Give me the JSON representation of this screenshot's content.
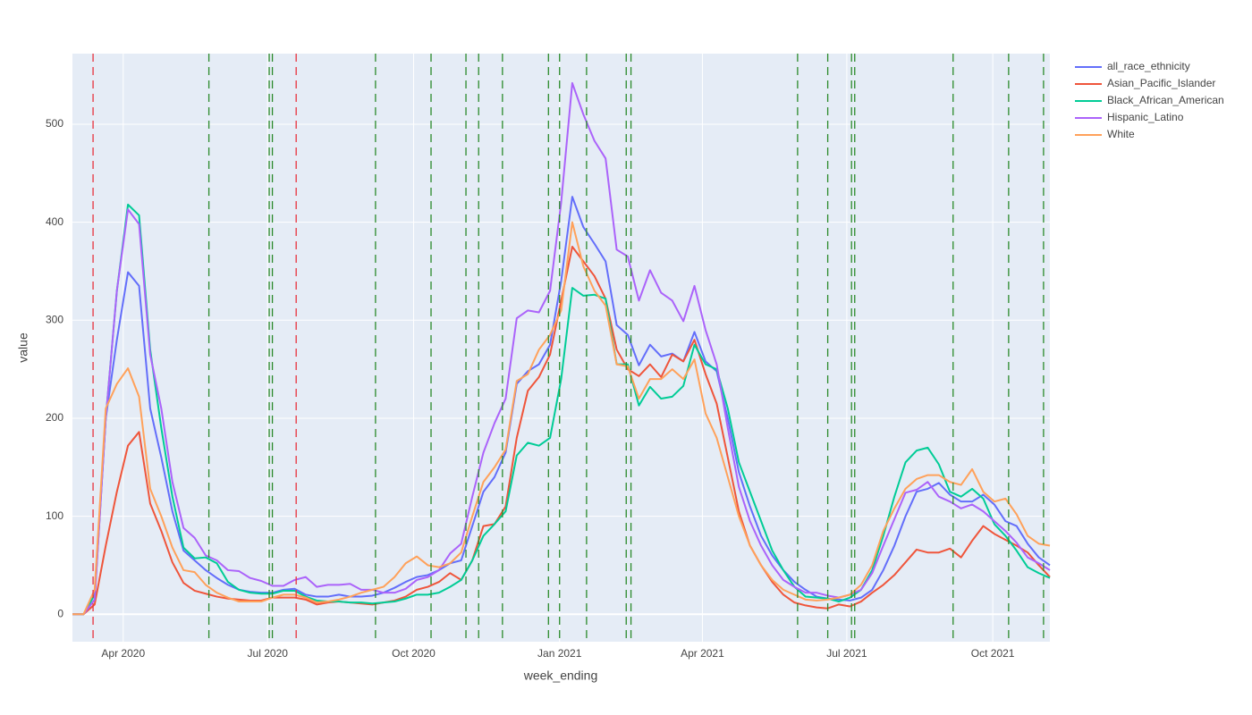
{
  "chart_data": {
    "type": "line",
    "x_label": "week_ending",
    "y_label": "value",
    "x": [
      "2020-02-29",
      "2020-03-07",
      "2020-03-14",
      "2020-03-21",
      "2020-03-28",
      "2020-04-04",
      "2020-04-11",
      "2020-04-18",
      "2020-04-25",
      "2020-05-02",
      "2020-05-09",
      "2020-05-16",
      "2020-05-23",
      "2020-05-30",
      "2020-06-06",
      "2020-06-13",
      "2020-06-20",
      "2020-06-27",
      "2020-07-04",
      "2020-07-11",
      "2020-07-18",
      "2020-07-25",
      "2020-08-01",
      "2020-08-08",
      "2020-08-15",
      "2020-08-22",
      "2020-08-29",
      "2020-09-05",
      "2020-09-12",
      "2020-09-19",
      "2020-09-26",
      "2020-10-03",
      "2020-10-10",
      "2020-10-17",
      "2020-10-24",
      "2020-10-31",
      "2020-11-07",
      "2020-11-14",
      "2020-11-21",
      "2020-11-28",
      "2020-12-05",
      "2020-12-12",
      "2020-12-19",
      "2020-12-26",
      "2021-01-02",
      "2021-01-09",
      "2021-01-16",
      "2021-01-23",
      "2021-01-30",
      "2021-02-06",
      "2021-02-13",
      "2021-02-20",
      "2021-02-27",
      "2021-03-06",
      "2021-03-13",
      "2021-03-20",
      "2021-03-27",
      "2021-04-03",
      "2021-04-10",
      "2021-04-17",
      "2021-04-24",
      "2021-05-01",
      "2021-05-08",
      "2021-05-15",
      "2021-05-22",
      "2021-05-29",
      "2021-06-05",
      "2021-06-12",
      "2021-06-19",
      "2021-06-26",
      "2021-07-03",
      "2021-07-10",
      "2021-07-17",
      "2021-07-24",
      "2021-07-31",
      "2021-08-07",
      "2021-08-14",
      "2021-08-21",
      "2021-08-28",
      "2021-09-04",
      "2021-09-11",
      "2021-09-18",
      "2021-09-25",
      "2021-10-02",
      "2021-10-09",
      "2021-10-16",
      "2021-10-23",
      "2021-10-30",
      "2021-11-06"
    ],
    "series": [
      {
        "name": "all_race_ethnicity",
        "color": "#636efa",
        "values": [
          0,
          0,
          15,
          200,
          280,
          349,
          335,
          210,
          160,
          105,
          65,
          55,
          45,
          37,
          30,
          25,
          23,
          22,
          22,
          25,
          26,
          20,
          18,
          18,
          20,
          18,
          18,
          19,
          22,
          27,
          33,
          38,
          40,
          45,
          52,
          55,
          90,
          125,
          140,
          165,
          235,
          248,
          255,
          275,
          340,
          426,
          395,
          378,
          360,
          295,
          285,
          254,
          275,
          263,
          266,
          258,
          288,
          258,
          248,
          200,
          145,
          110,
          80,
          60,
          45,
          33,
          25,
          18,
          16,
          15,
          14,
          17,
          25,
          45,
          70,
          100,
          125,
          128,
          134,
          122,
          115,
          115,
          122,
          112,
          95,
          90,
          72,
          58,
          50
        ]
      },
      {
        "name": "Asian_Pacific_Islander",
        "color": "#EF553B",
        "values": [
          0,
          0,
          10,
          70,
          125,
          172,
          186,
          113,
          85,
          53,
          32,
          24,
          21,
          18,
          16,
          15,
          14,
          14,
          17,
          17,
          17,
          15,
          10,
          12,
          13,
          12,
          11,
          10,
          12,
          14,
          18,
          25,
          28,
          33,
          42,
          35,
          55,
          90,
          92,
          110,
          180,
          228,
          242,
          265,
          320,
          375,
          360,
          345,
          322,
          270,
          250,
          243,
          255,
          242,
          265,
          258,
          280,
          245,
          215,
          160,
          105,
          70,
          50,
          33,
          20,
          12,
          9,
          7,
          6,
          10,
          8,
          13,
          22,
          30,
          40,
          53,
          66,
          63,
          63,
          67,
          58,
          75,
          90,
          82,
          76,
          70,
          63,
          50,
          38
        ]
      },
      {
        "name": "Black_African_American",
        "color": "#00cc96",
        "values": [
          0,
          0,
          20,
          200,
          330,
          418,
          407,
          270,
          190,
          120,
          68,
          57,
          58,
          52,
          33,
          25,
          22,
          21,
          21,
          24,
          24,
          18,
          14,
          13,
          13,
          12,
          12,
          11,
          12,
          13,
          16,
          20,
          20,
          22,
          28,
          35,
          55,
          80,
          92,
          105,
          162,
          175,
          172,
          180,
          240,
          333,
          325,
          326,
          322,
          255,
          255,
          213,
          232,
          220,
          222,
          233,
          275,
          255,
          250,
          210,
          155,
          125,
          95,
          65,
          45,
          28,
          18,
          17,
          16,
          13,
          17,
          25,
          45,
          80,
          120,
          155,
          167,
          170,
          153,
          125,
          120,
          128,
          118,
          92,
          80,
          65,
          48,
          42,
          37
        ]
      },
      {
        "name": "Hispanic_Latino",
        "color": "#ab63fa",
        "values": [
          0,
          0,
          15,
          200,
          330,
          413,
          398,
          265,
          210,
          135,
          88,
          78,
          60,
          55,
          45,
          44,
          37,
          34,
          29,
          29,
          35,
          38,
          28,
          30,
          30,
          31,
          25,
          25,
          22,
          22,
          26,
          35,
          38,
          45,
          62,
          72,
          120,
          165,
          195,
          220,
          302,
          310,
          308,
          330,
          420,
          542,
          510,
          483,
          465,
          372,
          365,
          320,
          351,
          328,
          320,
          299,
          335,
          290,
          255,
          190,
          130,
          95,
          70,
          50,
          35,
          28,
          22,
          22,
          19,
          17,
          20,
          25,
          42,
          70,
          97,
          124,
          127,
          135,
          120,
          115,
          108,
          112,
          105,
          95,
          85,
          73,
          58,
          52,
          45
        ]
      },
      {
        "name": "White",
        "color": "#FFA15A",
        "values": [
          0,
          0,
          25,
          210,
          235,
          251,
          222,
          128,
          100,
          68,
          45,
          43,
          30,
          22,
          17,
          13,
          13,
          13,
          17,
          20,
          20,
          17,
          12,
          13,
          15,
          18,
          22,
          25,
          28,
          38,
          52,
          59,
          50,
          48,
          52,
          63,
          100,
          135,
          150,
          168,
          238,
          245,
          270,
          285,
          310,
          400,
          355,
          330,
          315,
          255,
          253,
          220,
          240,
          240,
          250,
          240,
          260,
          205,
          180,
          140,
          100,
          70,
          50,
          35,
          25,
          20,
          15,
          14,
          15,
          17,
          20,
          30,
          50,
          85,
          108,
          128,
          138,
          142,
          142,
          135,
          132,
          148,
          125,
          115,
          118,
          102,
          80,
          72,
          70
        ]
      }
    ],
    "shapes": [
      {
        "x": "2020-03-13",
        "color": "#e8323c"
      },
      {
        "x": "2020-07-19",
        "color": "#e8323c"
      },
      {
        "x": "2020-05-25",
        "color": "#2a8a2a"
      },
      {
        "x": "2020-07-02",
        "color": "#2a8a2a"
      },
      {
        "x": "2020-07-04",
        "color": "#2a8a2a"
      },
      {
        "x": "2020-09-07",
        "color": "#2a8a2a"
      },
      {
        "x": "2020-10-12",
        "color": "#2a8a2a"
      },
      {
        "x": "2020-11-03",
        "color": "#2a8a2a"
      },
      {
        "x": "2020-11-11",
        "color": "#2a8a2a"
      },
      {
        "x": "2020-11-26",
        "color": "#2a8a2a"
      },
      {
        "x": "2020-12-25",
        "color": "#2a8a2a"
      },
      {
        "x": "2021-01-01",
        "color": "#2a8a2a"
      },
      {
        "x": "2021-01-18",
        "color": "#2a8a2a"
      },
      {
        "x": "2021-02-12",
        "color": "#2a8a2a"
      },
      {
        "x": "2021-02-15",
        "color": "#2a8a2a"
      },
      {
        "x": "2021-05-31",
        "color": "#2a8a2a"
      },
      {
        "x": "2021-06-19",
        "color": "#2a8a2a"
      },
      {
        "x": "2021-07-04",
        "color": "#2a8a2a"
      },
      {
        "x": "2021-07-06",
        "color": "#2a8a2a"
      },
      {
        "x": "2021-09-06",
        "color": "#2a8a2a"
      },
      {
        "x": "2021-10-11",
        "color": "#2a8a2a"
      },
      {
        "x": "2021-11-02",
        "color": "#2a8a2a"
      }
    ],
    "xlim": [
      "2020-02-29",
      "2021-11-06"
    ],
    "xticks": [
      {
        "value": "2020-04-01",
        "label": "Apr 2020"
      },
      {
        "value": "2020-07-01",
        "label": "Jul 2020"
      },
      {
        "value": "2020-10-01",
        "label": "Oct 2020"
      },
      {
        "value": "2021-01-01",
        "label": "Jan 2021"
      },
      {
        "value": "2021-04-01",
        "label": "Apr 2021"
      },
      {
        "value": "2021-07-01",
        "label": "Jul 2021"
      },
      {
        "value": "2021-10-01",
        "label": "Oct 2021"
      }
    ],
    "ylim": [
      -28,
      572
    ],
    "yticks": [
      0,
      100,
      200,
      300,
      400,
      500
    ],
    "grid": true,
    "legend": "outside-right"
  }
}
